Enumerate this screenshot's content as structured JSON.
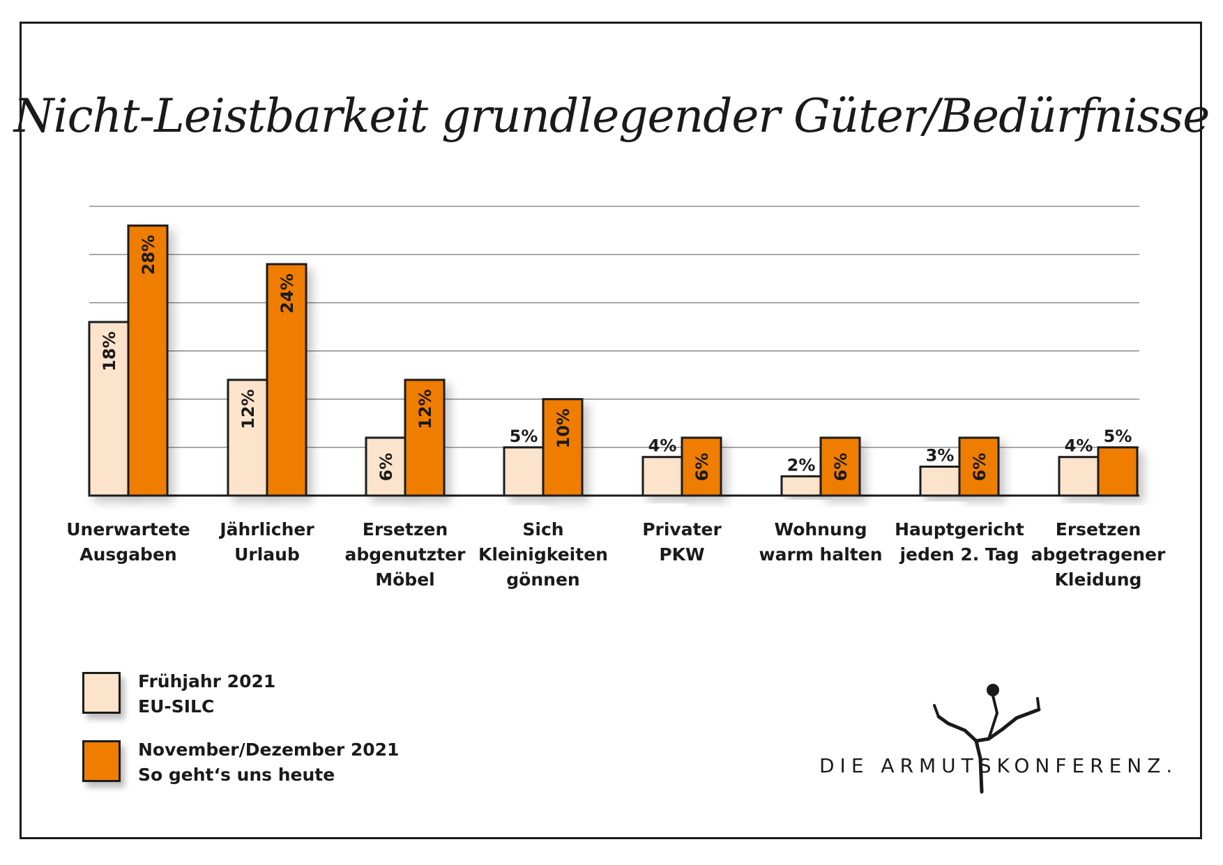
{
  "chart_data": {
    "type": "bar",
    "title": "Nicht-Leistbarkeit grundlegender Güter/Bedürfnisse",
    "categories": [
      [
        "Unerwartete",
        "Ausgaben"
      ],
      [
        "Jährlicher",
        "Urlaub"
      ],
      [
        "Ersetzen",
        "abgenutzter",
        "Möbel"
      ],
      [
        "Sich",
        "Kleinigkeiten",
        "gönnen"
      ],
      [
        "Privater",
        "PKW"
      ],
      [
        "Wohnung",
        "warm halten"
      ],
      [
        "Hauptgericht",
        "jeden 2. Tag"
      ],
      [
        "Ersetzen",
        "abgetragener",
        "Kleidung"
      ]
    ],
    "series": [
      {
        "name": "Frühjahr 2021 EU-SILC",
        "values": [
          18,
          12,
          6,
          5,
          4,
          2,
          3,
          4
        ],
        "labels": [
          "18%",
          "12%",
          "6%",
          "5%",
          "4%",
          "2%",
          "3%",
          "4%"
        ],
        "color": "#fce4cc"
      },
      {
        "name": "November/Dezember 2021 So geht's uns heute",
        "values": [
          28,
          24,
          12,
          10,
          6,
          6,
          6,
          5
        ],
        "labels": [
          "28%",
          "24%",
          "12%",
          "10%",
          "6%",
          "6%",
          "6%",
          "5%"
        ],
        "color": "#ef7d00"
      }
    ],
    "ylim": [
      0,
      30
    ],
    "grid": true,
    "legend_placement": "bottom-left"
  },
  "legend": [
    {
      "line1": "Frühjahr 2021",
      "line2": "EU-SILC",
      "color": "#fce4cc"
    },
    {
      "line1": "November/Dezember 2021",
      "line2": "So geht‘s uns heute",
      "color": "#ef7d00"
    }
  ],
  "logo": {
    "text": "DIE ARMUTSKONFERENZ."
  }
}
